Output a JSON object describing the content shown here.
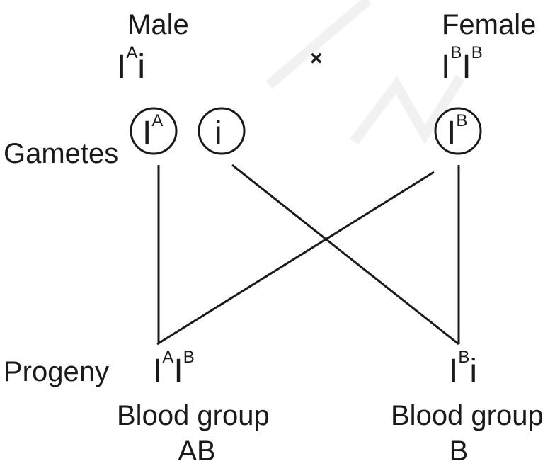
{
  "parents": {
    "male": {
      "label": "Male",
      "genotype": {
        "allele1": "I",
        "allele1_sup": "A",
        "allele2": "i"
      }
    },
    "cross_symbol": "×",
    "female": {
      "label": "Female",
      "genotype": {
        "allele1": "I",
        "allele1_sup": "B",
        "allele2": "I",
        "allele2_sup": "B"
      }
    }
  },
  "gametes": {
    "label": "Gametes",
    "items": [
      {
        "base": "I",
        "sup": "A"
      },
      {
        "base": "i",
        "sup": ""
      },
      {
        "base": "I",
        "sup": "B"
      }
    ]
  },
  "progeny": {
    "label": "Progeny",
    "items": [
      {
        "allele1": "I",
        "allele1_sup": "A",
        "allele2": "I",
        "allele2_sup": "B",
        "blood_group_label": "Blood group",
        "blood_group": "AB"
      },
      {
        "allele1": "I",
        "allele1_sup": "B",
        "allele2": "i",
        "blood_group_label": "Blood group",
        "blood_group": "B"
      }
    ]
  },
  "colors": {
    "ink": "#1a1a1a",
    "watermark": "#f1f1f1"
  }
}
